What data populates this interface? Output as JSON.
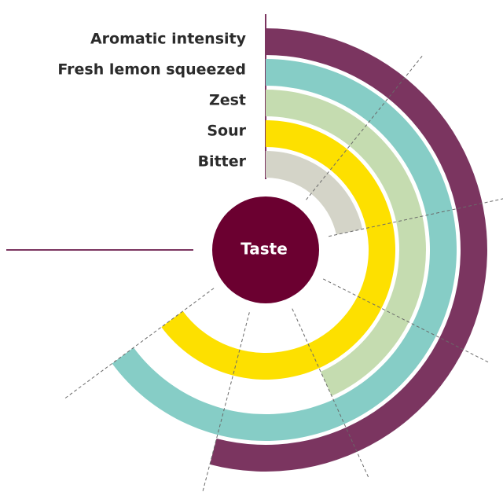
{
  "chart_data": {
    "type": "radial-bar",
    "center_label": "Taste",
    "categories": [
      "Aromatic intensity",
      "Fresh lemon squeezed",
      "Zest",
      "Sour",
      "Bitter"
    ],
    "values": [
      5,
      6,
      4,
      6,
      2
    ],
    "colors": [
      "#7b3560",
      "#86cdc6",
      "#c5dcb0",
      "#fde000",
      "#d4d4c8"
    ],
    "vlim": [
      0,
      9.25
    ],
    "ticks": [
      1,
      2,
      3,
      4,
      5,
      6
    ],
    "grid": true
  }
}
